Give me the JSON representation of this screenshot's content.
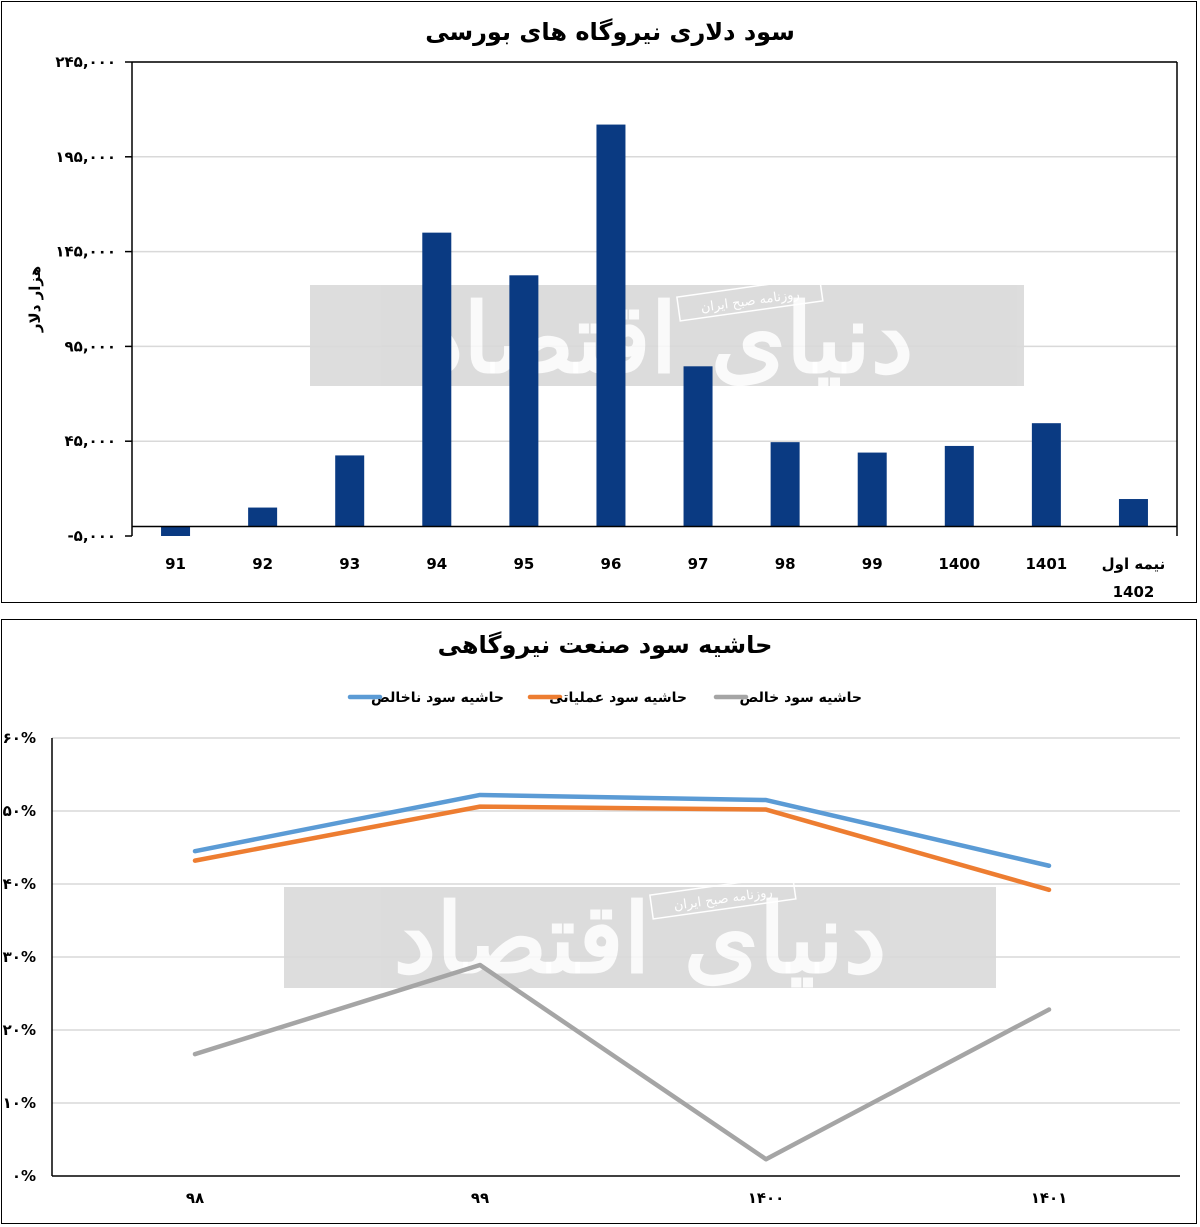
{
  "watermark": {
    "brand": "دنیای اقتصاد",
    "tagline": "روزنامه صبح ایران"
  },
  "chart_data": [
    {
      "type": "bar",
      "title": "سود دلاری نیروگاه های بورسی",
      "ylabel": "هزار دلار",
      "xlabel": "",
      "categories": [
        "91",
        "92",
        "93",
        "94",
        "95",
        "96",
        "97",
        "98",
        "99",
        "1400",
        "1401",
        "نیمه اول 1402"
      ],
      "values": [
        -5000,
        10000,
        37500,
        155000,
        132500,
        212000,
        84500,
        44500,
        39000,
        42500,
        54500,
        14500
      ],
      "ylim": [
        -5000,
        245000
      ],
      "yticks": [
        -5000,
        45000,
        95000,
        145000,
        195000,
        245000
      ],
      "ytick_labels": [
        "-۵,۰۰۰",
        "۴۵,۰۰۰",
        "۹۵,۰۰۰",
        "۱۴۵,۰۰۰",
        "۱۹۵,۰۰۰",
        "۲۴۵,۰۰۰"
      ],
      "color": "#0a3a82",
      "grid": true
    },
    {
      "type": "line",
      "title": "حاشیه سود صنعت نیروگاهی",
      "categories": [
        "۹۸",
        "۹۹",
        "۱۴۰۰",
        "۱۴۰۱"
      ],
      "series": [
        {
          "name": "حاشیه سود ناخالص",
          "color": "#5b9bd5",
          "values": [
            44.5,
            52.2,
            51.5,
            42.5
          ]
        },
        {
          "name": "حاشیه سود عملیاتی",
          "color": "#ed7d31",
          "values": [
            43.2,
            50.6,
            50.2,
            39.2
          ]
        },
        {
          "name": "حاشیه سود خالص",
          "color": "#a5a5a5",
          "values": [
            16.7,
            28.9,
            2.3,
            22.8
          ]
        }
      ],
      "ylim": [
        0,
        60
      ],
      "yticks": [
        0,
        10,
        20,
        30,
        40,
        50,
        60
      ],
      "ytick_labels": [
        "۰%",
        "۱۰%",
        "۲۰%",
        "۳۰%",
        "۴۰%",
        "۵۰%",
        "۶۰%"
      ],
      "legend": "top-center",
      "grid": true
    }
  ]
}
